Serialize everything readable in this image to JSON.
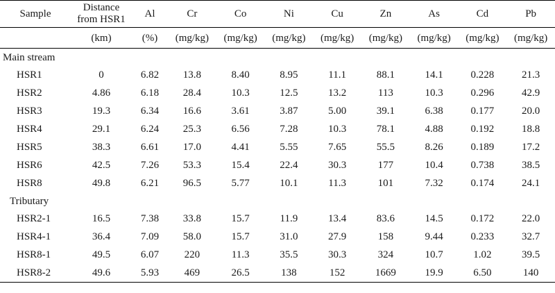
{
  "header": {
    "sample": "Sample",
    "distance": [
      "Distance",
      "from HSR1"
    ],
    "elements": [
      "Al",
      "Cr",
      "Co",
      "Ni",
      "Cu",
      "Zn",
      "As",
      "Cd",
      "Pb"
    ]
  },
  "units": [
    "(km)",
    "(%)",
    "(mg/kg)",
    "(mg/kg)",
    "(mg/kg)",
    "(mg/kg)",
    "(mg/kg)",
    "(mg/kg)",
    "(mg/kg)",
    "(mg/kg)"
  ],
  "sections": [
    {
      "label": "Main stream",
      "rows": [
        [
          "HSR1",
          "0",
          "6.82",
          "13.8",
          "8.40",
          "8.95",
          "11.1",
          "88.1",
          "14.1",
          "0.228",
          "21.3"
        ],
        [
          "HSR2",
          "4.86",
          "6.18",
          "28.4",
          "10.3",
          "12.5",
          "13.2",
          "113",
          "10.3",
          "0.296",
          "42.9"
        ],
        [
          "HSR3",
          "19.3",
          "6.34",
          "16.6",
          "3.61",
          "3.87",
          "5.00",
          "39.1",
          "6.38",
          "0.177",
          "20.0"
        ],
        [
          "HSR4",
          "29.1",
          "6.24",
          "25.3",
          "6.56",
          "7.28",
          "10.3",
          "78.1",
          "4.88",
          "0.192",
          "18.8"
        ],
        [
          "HSR5",
          "38.3",
          "6.61",
          "17.0",
          "4.41",
          "5.55",
          "7.65",
          "55.5",
          "8.26",
          "0.189",
          "17.2"
        ],
        [
          "HSR6",
          "42.5",
          "7.26",
          "53.3",
          "15.4",
          "22.4",
          "30.3",
          "177",
          "10.4",
          "0.738",
          "38.5"
        ],
        [
          "HSR8",
          "49.8",
          "6.21",
          "96.5",
          "5.77",
          "10.1",
          "11.3",
          "101",
          "7.32",
          "0.174",
          "24.1"
        ]
      ]
    },
    {
      "label": "Tributary",
      "rows": [
        [
          "HSR2-1",
          "16.5",
          "7.38",
          "33.8",
          "15.7",
          "11.9",
          "13.4",
          "83.6",
          "14.5",
          "0.172",
          "22.0"
        ],
        [
          "HSR4-1",
          "36.4",
          "7.09",
          "58.0",
          "15.7",
          "31.0",
          "27.9",
          "158",
          "9.44",
          "0.233",
          "32.7"
        ],
        [
          "HSR8-1",
          "49.5",
          "6.07",
          "220",
          "11.3",
          "35.5",
          "30.3",
          "324",
          "10.7",
          "1.02",
          "39.5"
        ],
        [
          "HSR8-2",
          "49.6",
          "5.93",
          "469",
          "26.5",
          "138",
          "152",
          "1669",
          "19.9",
          "6.50",
          "140"
        ]
      ]
    }
  ]
}
